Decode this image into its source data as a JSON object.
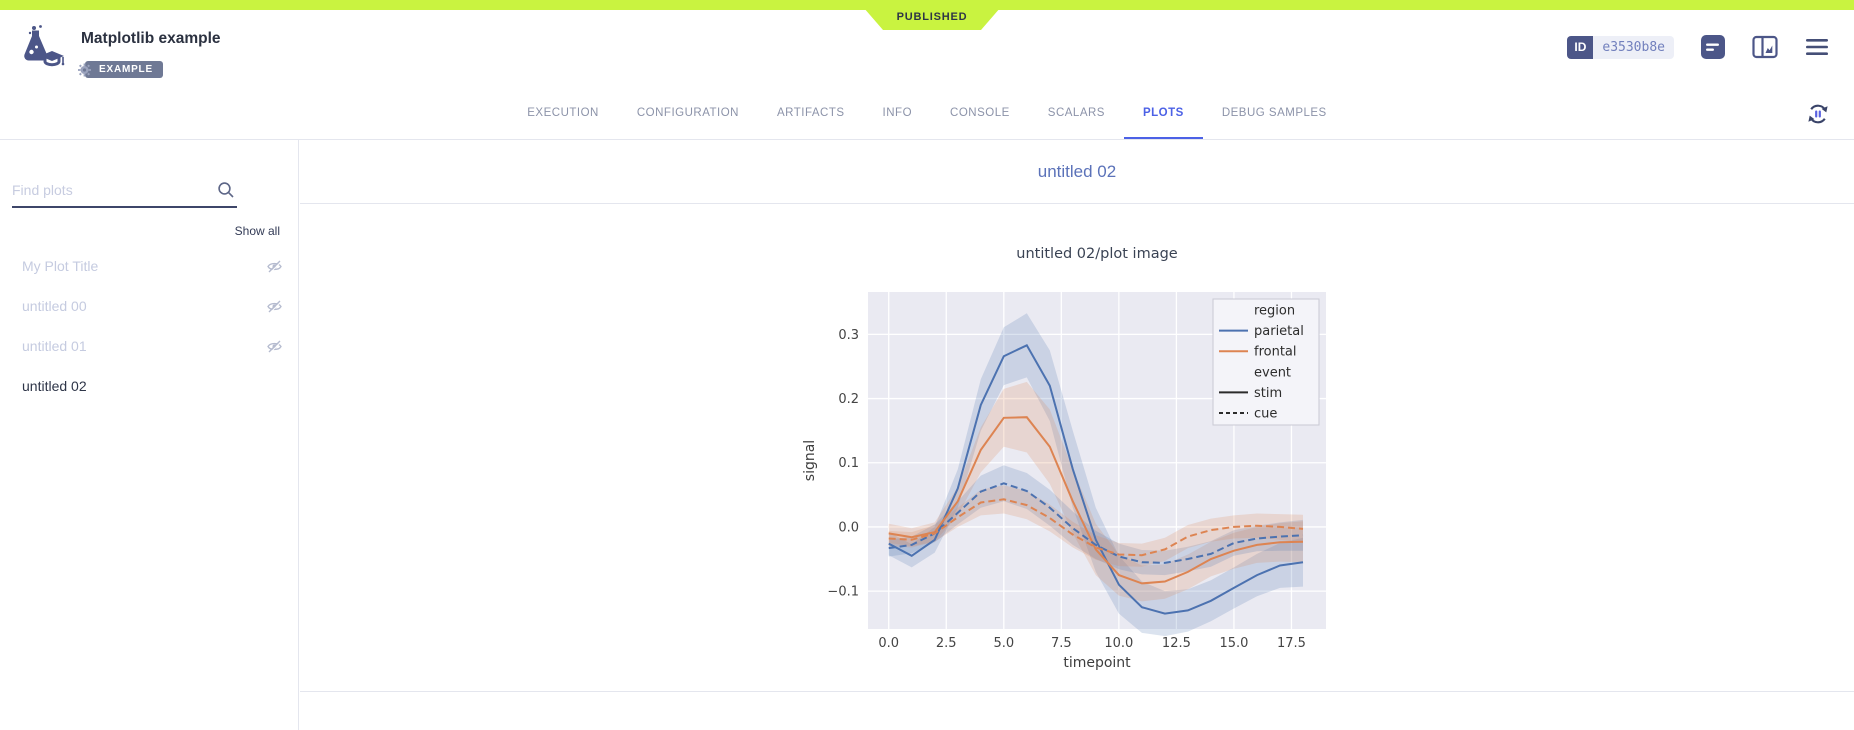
{
  "topbar": {
    "published_label": "PUBLISHED",
    "accent_color": "#c9f340"
  },
  "header": {
    "title": "Matplotlib example",
    "tag_label": "EXAMPLE",
    "id_label": "ID",
    "id_value": "e3530b8e"
  },
  "tabs": {
    "active_color": "#4c61e6",
    "items": [
      {
        "label": "EXECUTION",
        "active": false
      },
      {
        "label": "CONFIGURATION",
        "active": false
      },
      {
        "label": "ARTIFACTS",
        "active": false
      },
      {
        "label": "INFO",
        "active": false
      },
      {
        "label": "CONSOLE",
        "active": false
      },
      {
        "label": "SCALARS",
        "active": false
      },
      {
        "label": "PLOTS",
        "active": true
      },
      {
        "label": "DEBUG SAMPLES",
        "active": false
      }
    ]
  },
  "sidebar": {
    "search_placeholder": "Find plots",
    "search_value": "",
    "show_all_label": "Show all",
    "items": [
      {
        "label": "My Plot Title",
        "hidden": true,
        "active": false
      },
      {
        "label": "untitled 00",
        "hidden": true,
        "active": false
      },
      {
        "label": "untitled 01",
        "hidden": true,
        "active": false
      },
      {
        "label": "untitled 02",
        "hidden": false,
        "active": true
      }
    ]
  },
  "main": {
    "group_title": "untitled 02"
  },
  "chart_data": {
    "type": "line",
    "title": "untitled 02/plot image",
    "xlabel": "timepoint",
    "ylabel": "signal",
    "background": "#eaeaf2",
    "grid": true,
    "xlim": [
      -0.9,
      19
    ],
    "ylim": [
      -0.159,
      0.366
    ],
    "xticks": [
      0.0,
      2.5,
      5.0,
      7.5,
      10.0,
      12.5,
      15.0,
      17.5
    ],
    "yticks": [
      -0.1,
      0.0,
      0.1,
      0.2,
      0.3
    ],
    "x": [
      0,
      1,
      2,
      3,
      4,
      5,
      6,
      7,
      8,
      9,
      10,
      11,
      12,
      13,
      14,
      15,
      16,
      17,
      18
    ],
    "series": [
      {
        "name": "parietal-stim",
        "region": "parietal",
        "event": "stim",
        "color": "#4c72b0",
        "dash": "solid",
        "values": [
          -0.026,
          -0.045,
          -0.02,
          0.06,
          0.19,
          0.266,
          0.283,
          0.22,
          0.09,
          -0.02,
          -0.09,
          -0.125,
          -0.135,
          -0.13,
          -0.115,
          -0.095,
          -0.075,
          -0.06,
          -0.055
        ],
        "band": [
          0.018,
          0.018,
          0.02,
          0.03,
          0.04,
          0.045,
          0.05,
          0.055,
          0.06,
          0.05,
          0.045,
          0.04,
          0.035,
          0.033,
          0.032,
          0.032,
          0.033,
          0.035,
          0.038
        ]
      },
      {
        "name": "frontal-stim",
        "region": "frontal",
        "event": "stim",
        "color": "#dd8452",
        "dash": "solid",
        "values": [
          -0.01,
          -0.016,
          -0.008,
          0.04,
          0.12,
          0.17,
          0.171,
          0.125,
          0.04,
          -0.035,
          -0.075,
          -0.088,
          -0.085,
          -0.07,
          -0.05,
          -0.037,
          -0.028,
          -0.024,
          -0.023
        ],
        "band": [
          0.015,
          0.014,
          0.015,
          0.022,
          0.035,
          0.045,
          0.055,
          0.058,
          0.05,
          0.04,
          0.032,
          0.028,
          0.027,
          0.027,
          0.027,
          0.028,
          0.028,
          0.03,
          0.032
        ]
      },
      {
        "name": "parietal-cue",
        "region": "parietal",
        "event": "cue",
        "color": "#4c72b0",
        "dash": "dashed",
        "values": [
          -0.033,
          -0.028,
          -0.01,
          0.022,
          0.055,
          0.068,
          0.056,
          0.03,
          -0.002,
          -0.028,
          -0.046,
          -0.055,
          -0.056,
          -0.05,
          -0.042,
          -0.025,
          -0.018,
          -0.015,
          -0.013
        ],
        "band": [
          0.013,
          0.013,
          0.014,
          0.018,
          0.025,
          0.028,
          0.028,
          0.028,
          0.026,
          0.022,
          0.02,
          0.019,
          0.019,
          0.019,
          0.02,
          0.02,
          0.02,
          0.022,
          0.024
        ]
      },
      {
        "name": "frontal-cue",
        "region": "frontal",
        "event": "cue",
        "color": "#dd8452",
        "dash": "dashed",
        "values": [
          -0.018,
          -0.02,
          -0.01,
          0.015,
          0.038,
          0.043,
          0.034,
          0.014,
          -0.012,
          -0.032,
          -0.043,
          -0.044,
          -0.035,
          -0.015,
          -0.005,
          0.0,
          0.002,
          0.0,
          -0.003
        ],
        "band": [
          0.012,
          0.012,
          0.013,
          0.015,
          0.02,
          0.022,
          0.022,
          0.021,
          0.02,
          0.019,
          0.018,
          0.018,
          0.018,
          0.018,
          0.018,
          0.018,
          0.019,
          0.02,
          0.022
        ]
      }
    ],
    "legend": {
      "position": "upper right",
      "entries": [
        {
          "type": "header",
          "label": "region"
        },
        {
          "type": "line",
          "label": "parietal",
          "color": "#4c72b0",
          "dash": "solid"
        },
        {
          "type": "line",
          "label": "frontal",
          "color": "#dd8452",
          "dash": "solid"
        },
        {
          "type": "header",
          "label": "event"
        },
        {
          "type": "line",
          "label": "stim",
          "color": "#2b2b2b",
          "dash": "solid"
        },
        {
          "type": "line",
          "label": "cue",
          "color": "#2b2b2b",
          "dash": "dashed"
        }
      ]
    }
  }
}
